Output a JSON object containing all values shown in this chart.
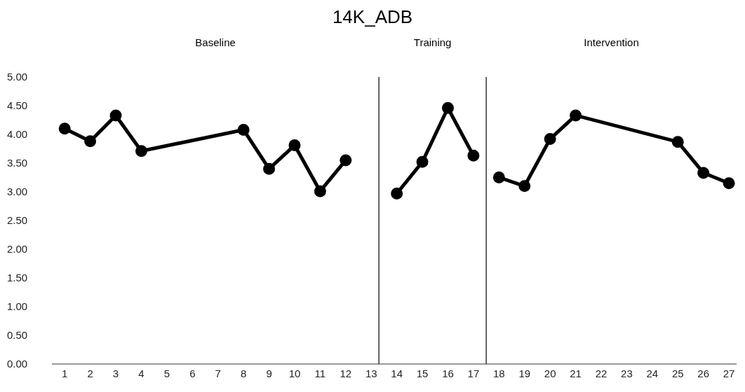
{
  "chart_data": {
    "type": "line",
    "title": "14K_ADB",
    "annotations": [
      "Baseline",
      "Training",
      "Intervention"
    ],
    "x": [
      1,
      2,
      3,
      4,
      5,
      6,
      7,
      8,
      9,
      10,
      11,
      12,
      13,
      14,
      15,
      16,
      17,
      18,
      19,
      20,
      21,
      22,
      23,
      24,
      25,
      26,
      27
    ],
    "series": [
      {
        "color": "#000000",
        "values": [
          4.1,
          3.88,
          4.33,
          3.71,
          null,
          null,
          null,
          4.08,
          3.4,
          3.81,
          3.01,
          3.55,
          null,
          null,
          null,
          null,
          null,
          null,
          null,
          null,
          null,
          null,
          null,
          null,
          null,
          null,
          null
        ]
      },
      {
        "color": "#000000",
        "values": [
          null,
          null,
          null,
          null,
          null,
          null,
          null,
          null,
          null,
          null,
          null,
          null,
          null,
          2.97,
          3.52,
          4.46,
          3.63,
          null,
          null,
          null,
          null,
          null,
          null,
          null,
          null,
          null,
          null
        ]
      },
      {
        "color": "#000000",
        "values": [
          null,
          null,
          null,
          null,
          null,
          null,
          null,
          null,
          null,
          null,
          null,
          null,
          null,
          null,
          null,
          null,
          null,
          3.25,
          3.1,
          3.92,
          4.33,
          null,
          null,
          null,
          3.87,
          3.33,
          3.15
        ]
      }
    ],
    "xlim": [
      0.5,
      27.3
    ],
    "xticks": [
      1,
      2,
      3,
      4,
      5,
      6,
      7,
      8,
      9,
      10,
      11,
      12,
      13,
      14,
      15,
      16,
      17,
      18,
      19,
      20,
      21,
      22,
      23,
      24,
      25,
      26,
      27
    ],
    "ylim": [
      0,
      5
    ],
    "yticks": [
      {
        "value": 0,
        "label": "0.00"
      },
      {
        "value": 0.5,
        "label": "0.50"
      },
      {
        "value": 1,
        "label": "1.00"
      },
      {
        "value": 1.5,
        "label": "1.50"
      },
      {
        "value": 2,
        "label": "2.00"
      },
      {
        "value": 2.5,
        "label": "2.50"
      },
      {
        "value": 3,
        "label": "3.00"
      },
      {
        "value": 3.5,
        "label": "3.50"
      },
      {
        "value": 4,
        "label": "4.00"
      },
      {
        "value": 4.5,
        "label": "4.50"
      },
      {
        "value": 5,
        "label": "5.00"
      }
    ],
    "ref_lines": [
      {
        "axis": "x",
        "value": 13.3,
        "color": "#333333"
      },
      {
        "axis": "x",
        "value": 17.5,
        "color": "#333333"
      }
    ],
    "marker": "circle",
    "line_style": "solid",
    "grid": false,
    "legend": false
  }
}
